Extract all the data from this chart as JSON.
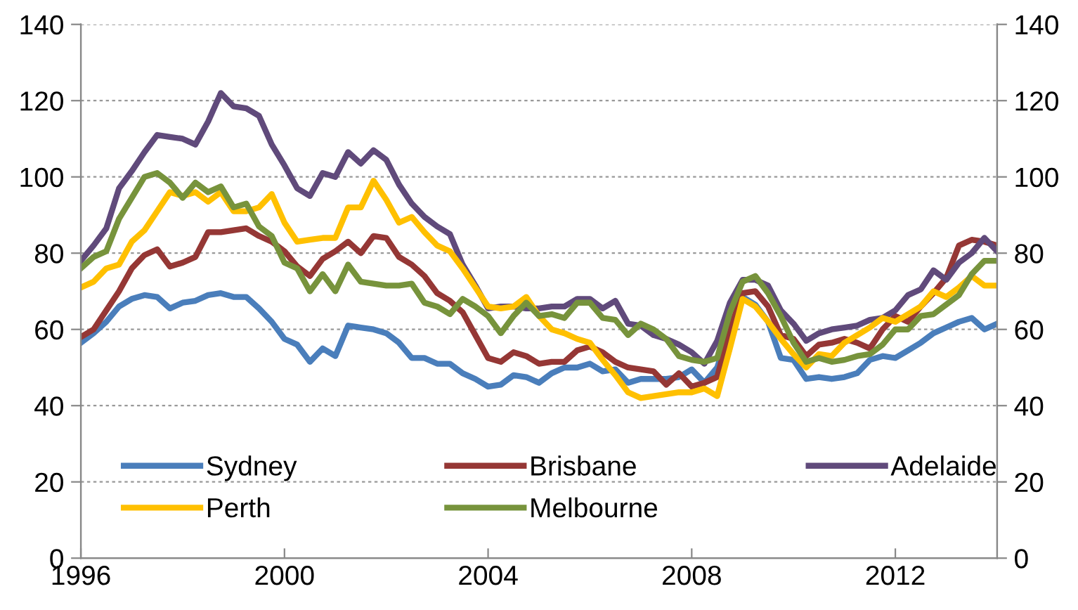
{
  "chart_data": {
    "type": "line",
    "x": [
      1996,
      1996.25,
      1996.5,
      1996.75,
      1997,
      1997.25,
      1997.5,
      1997.75,
      1998,
      1998.25,
      1998.5,
      1998.75,
      1999,
      1999.25,
      1999.5,
      1999.75,
      2000,
      2000.25,
      2000.5,
      2000.75,
      2001,
      2001.25,
      2001.5,
      2001.75,
      2002,
      2002.25,
      2002.5,
      2002.75,
      2003,
      2003.25,
      2003.5,
      2003.75,
      2004,
      2004.25,
      2004.5,
      2004.75,
      2005,
      2005.25,
      2005.5,
      2005.75,
      2006,
      2006.25,
      2006.5,
      2006.75,
      2007,
      2007.25,
      2007.5,
      2007.75,
      2008,
      2008.25,
      2008.5,
      2008.75,
      2009,
      2009.25,
      2009.5,
      2009.75,
      2010,
      2010.25,
      2010.5,
      2010.75,
      2011,
      2011.25,
      2011.5,
      2011.75,
      2012,
      2012.25,
      2012.5,
      2012.75,
      2013,
      2013.25,
      2013.5,
      2013.75,
      2014
    ],
    "series": [
      {
        "name": "Sydney",
        "color": "#4a7ebb",
        "values": [
          56.5,
          59,
          62,
          66,
          68,
          69,
          68.5,
          65.5,
          67,
          67.5,
          69,
          69.5,
          68.5,
          68.5,
          65.5,
          62,
          57.5,
          56,
          51.5,
          55,
          53,
          61,
          60.5,
          60,
          59,
          56.5,
          52.5,
          52.5,
          51,
          51,
          48.5,
          47,
          45,
          45.5,
          48,
          47.5,
          46,
          48.5,
          50,
          50,
          51,
          49,
          49.5,
          46,
          47,
          47,
          47,
          47.5,
          49.5,
          46,
          50,
          60,
          68.5,
          66.5,
          62,
          52.5,
          52,
          47,
          47.5,
          47,
          47.5,
          48.5,
          52,
          53,
          52.5,
          54.5,
          56.5,
          59,
          60.5,
          62,
          63,
          60,
          61.5
        ]
      },
      {
        "name": "Brisbane",
        "color": "#953735",
        "values": [
          58,
          60,
          65,
          70,
          76,
          79.5,
          81,
          76.5,
          77.5,
          79,
          85.5,
          85.5,
          86,
          86.5,
          84.5,
          83,
          80.5,
          76.5,
          74,
          78.5,
          80.5,
          83,
          80,
          84.5,
          84,
          79,
          77,
          74,
          69.5,
          67.5,
          64.5,
          58.5,
          52.5,
          51.5,
          54,
          53,
          51,
          51.5,
          51.5,
          54.5,
          55.5,
          54,
          51.5,
          50,
          49.5,
          49,
          45.5,
          48.5,
          45,
          46,
          47.5,
          60,
          69.5,
          70,
          66,
          58.5,
          57.5,
          53,
          56,
          56.5,
          57.5,
          56.5,
          55,
          60,
          63.5,
          62,
          66,
          69.5,
          73.5,
          82,
          83.5,
          83,
          82
        ]
      },
      {
        "name": "Adelaide",
        "color": "#604a7b",
        "values": [
          78,
          82,
          86.5,
          97,
          101.5,
          106.5,
          111,
          110.5,
          110,
          108.5,
          114.5,
          122,
          118.5,
          118,
          116,
          108.5,
          103,
          97,
          95,
          101,
          100,
          106.5,
          103.5,
          107,
          104.5,
          98,
          93,
          89.5,
          87,
          85,
          77,
          71.5,
          65.5,
          66,
          66,
          65.5,
          65.5,
          66,
          66,
          68,
          68,
          65.5,
          67.5,
          61.5,
          61,
          58.5,
          57.5,
          56,
          54,
          51,
          57,
          67,
          73,
          73,
          71.5,
          65,
          61.5,
          57,
          59,
          60,
          60.5,
          61,
          62.5,
          63,
          65,
          69,
          70.5,
          75.5,
          73,
          77.5,
          80,
          84,
          80.5
        ]
      },
      {
        "name": "Perth",
        "color": "#ffc000",
        "values": [
          71,
          72.5,
          76,
          77,
          83,
          86,
          91,
          96,
          95,
          96,
          93.5,
          96,
          91,
          91,
          92,
          95.5,
          88,
          83,
          83.5,
          84,
          84,
          92,
          92,
          99,
          94,
          88,
          89.5,
          85.5,
          82,
          80.5,
          76,
          71,
          66,
          65.5,
          66,
          68.5,
          63.5,
          60,
          59,
          57.5,
          56.5,
          52,
          48,
          43.5,
          42,
          42.5,
          43,
          43.5,
          43.5,
          44.5,
          42.5,
          55,
          68,
          66,
          62,
          57.5,
          53.5,
          50,
          53.5,
          53,
          56.5,
          58.5,
          60.5,
          63,
          62,
          64,
          66,
          70,
          68.5,
          71,
          74,
          71.5,
          71.5
        ]
      },
      {
        "name": "Melbourne",
        "color": "#77933c",
        "values": [
          76,
          79,
          80.5,
          89,
          94.5,
          100,
          101,
          98.5,
          94.5,
          98.5,
          96,
          97.5,
          92,
          93,
          87,
          84.5,
          77.5,
          76,
          70,
          74.5,
          70,
          77,
          72.5,
          72,
          71.5,
          71.5,
          72,
          67,
          66,
          64,
          68,
          66,
          63.5,
          59,
          63.5,
          67,
          63.5,
          64,
          63,
          67,
          67,
          63,
          62.5,
          58.5,
          61.5,
          60,
          57.5,
          53,
          52,
          51.5,
          52.5,
          64.5,
          72.5,
          74,
          69.5,
          63.5,
          56.5,
          51.5,
          52.5,
          51.5,
          52,
          53,
          53.5,
          56,
          60,
          60,
          63.5,
          64,
          66.5,
          69,
          74.5,
          78,
          78
        ]
      }
    ],
    "xlim": [
      1996,
      2014
    ],
    "xticks": [
      1996,
      2000,
      2004,
      2008,
      2012
    ],
    "ylim": [
      0,
      140
    ],
    "yticks": [
      0,
      20,
      40,
      60,
      80,
      100,
      120,
      140
    ],
    "y2lim": [
      0,
      140
    ],
    "y2ticks": [
      0,
      20,
      40,
      60,
      80,
      100,
      120,
      140
    ],
    "grid": "y",
    "legend": "bottom left",
    "marker": "none",
    "line_style": "solid"
  }
}
